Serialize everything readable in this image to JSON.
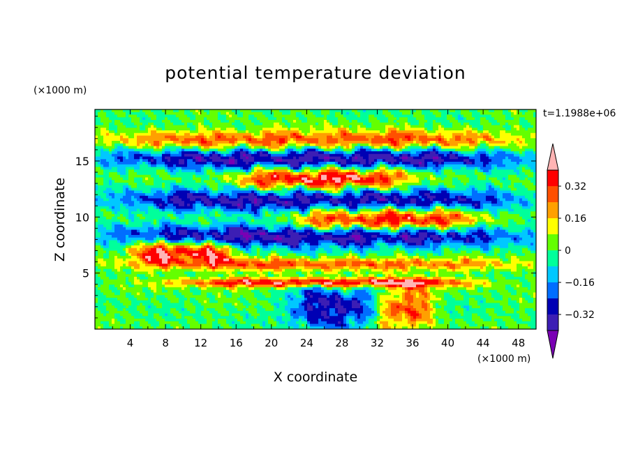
{
  "chart_data": {
    "type": "heatmap",
    "title": "potential temperature deviation",
    "time_label": "t=1.1988e+06",
    "xlabel": "X coordinate",
    "ylabel": "Z coordinate",
    "x_unit": "(×1000 m)",
    "y_unit": "(×1000 m)",
    "xlim": [
      0,
      50
    ],
    "ylim": [
      0,
      19.6
    ],
    "x_ticks": [
      4,
      8,
      12,
      16,
      20,
      24,
      28,
      32,
      36,
      40,
      44,
      48
    ],
    "y_ticks": [
      5,
      10,
      15
    ],
    "colorbar": {
      "levels": [
        -0.4,
        -0.32,
        -0.24,
        -0.16,
        -0.08,
        0,
        0.08,
        0.16,
        0.24,
        0.32,
        0.4
      ],
      "tick_labels": [
        "0.32",
        "0.16",
        "0",
        "−0.16",
        "−0.32"
      ],
      "tick_values": [
        0.32,
        0.16,
        0,
        -0.16,
        -0.32
      ],
      "colors": [
        "#7a00b4",
        "#3c1eb4",
        "#0000b4",
        "#006eff",
        "#00c8ff",
        "#00ff9b",
        "#64ff00",
        "#ffff00",
        "#ffa000",
        "#ff5000",
        "#ff0000",
        "#ffb4b4"
      ]
    },
    "features": [
      {
        "name": "upper-warm-layer",
        "x": [
          0,
          50
        ],
        "z": [
          16.2,
          17.6
        ],
        "value": 0.3
      },
      {
        "name": "upper-cold-band",
        "x": [
          0,
          50
        ],
        "z": [
          14.4,
          16.0
        ],
        "value": -0.38
      },
      {
        "name": "warm-tongue-upper",
        "x": [
          16,
          36
        ],
        "z": [
          12.6,
          14.2
        ],
        "value": 0.42
      },
      {
        "name": "cold-band-middle",
        "x": [
          0,
          50
        ],
        "z": [
          10.6,
          12.4
        ],
        "value": -0.36
      },
      {
        "name": "warm-plume-centre",
        "x": [
          22,
          44
        ],
        "z": [
          8.8,
          10.6
        ],
        "value": 0.42
      },
      {
        "name": "cold-layer-lower",
        "x": [
          0,
          50
        ],
        "z": [
          7.4,
          9.2
        ],
        "value": -0.4
      },
      {
        "name": "warm-blob-left",
        "x": [
          4,
          16
        ],
        "z": [
          6.2,
          7.8
        ],
        "value": 0.42
      },
      {
        "name": "inversion-strip",
        "x": [
          0,
          50
        ],
        "z": [
          5.4,
          6.2
        ],
        "value": 0.28
      },
      {
        "name": "warm-strip-low",
        "x": [
          8,
          44
        ],
        "z": [
          3.9,
          4.4
        ],
        "value": 0.42
      },
      {
        "name": "cold-dome-bottom",
        "x": [
          22,
          32
        ],
        "z": [
          0,
          3.8
        ],
        "value": -0.34
      },
      {
        "name": "warm-dome-bottom",
        "x": [
          32,
          38
        ],
        "z": [
          0,
          3.8
        ],
        "value": 0.3
      }
    ]
  }
}
